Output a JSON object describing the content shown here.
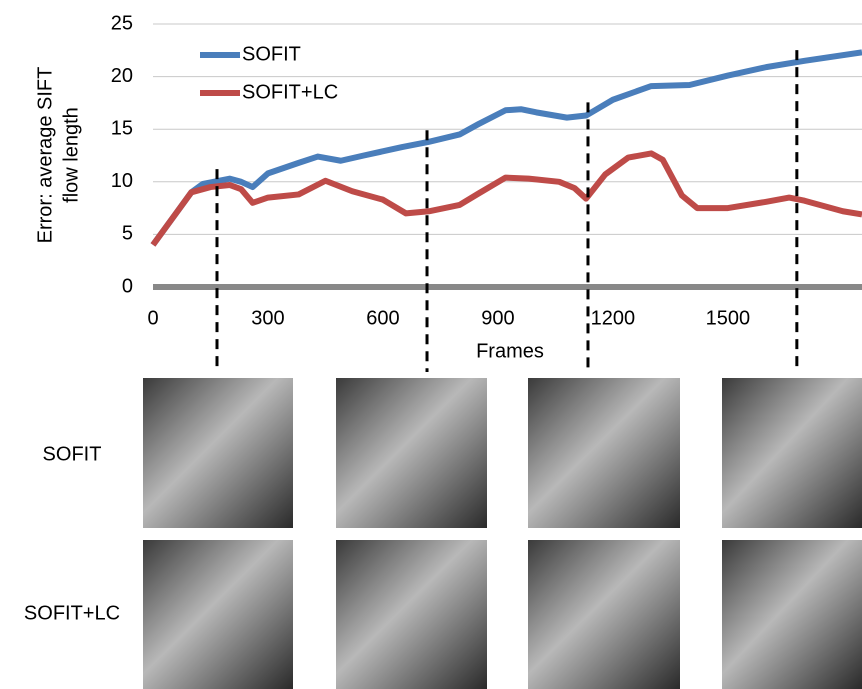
{
  "chart_data": {
    "type": "line",
    "ylabel": [
      "Error: average SIFT",
      "flow length"
    ],
    "xlabel": "Frames",
    "xlim": [
      0,
      1850
    ],
    "ylim": [
      0,
      25
    ],
    "xticks": [
      0,
      300,
      600,
      900,
      1200,
      1500
    ],
    "yticks": [
      0,
      5,
      10,
      15,
      20,
      25
    ],
    "grid": true,
    "legend": "upper left",
    "frame_markers": [
      167,
      715,
      1135,
      1680
    ],
    "series": [
      {
        "name": "SOFIT",
        "color": "#4a7ebb",
        "x": [
          0,
          30,
          60,
          100,
          130,
          200,
          230,
          260,
          300,
          380,
          430,
          490,
          550,
          650,
          720,
          800,
          850,
          920,
          960,
          1000,
          1080,
          1130,
          1200,
          1300,
          1400,
          1500,
          1600,
          1700,
          1850
        ],
        "values": [
          4,
          5.5,
          7,
          9,
          9.8,
          10.3,
          10,
          9.5,
          10.8,
          11.8,
          12.4,
          12,
          12.5,
          13.3,
          13.8,
          14.5,
          15.5,
          16.8,
          16.9,
          16.6,
          16.1,
          16.3,
          17.8,
          19.1,
          19.2,
          20.1,
          20.9,
          21.5,
          22.3
        ]
      },
      {
        "name": "SOFIT+LC",
        "color": "#be4b48",
        "x": [
          0,
          60,
          100,
          150,
          200,
          230,
          260,
          300,
          380,
          450,
          520,
          600,
          660,
          720,
          800,
          850,
          920,
          980,
          1060,
          1100,
          1130,
          1180,
          1240,
          1300,
          1330,
          1380,
          1420,
          1500,
          1600,
          1660,
          1700,
          1800,
          1850
        ],
        "values": [
          4,
          7,
          9,
          9.5,
          9.7,
          9.3,
          8,
          8.5,
          8.8,
          10.1,
          9.1,
          8.3,
          7,
          7.2,
          7.8,
          8.9,
          10.4,
          10.3,
          10,
          9.4,
          8.4,
          10.7,
          12.3,
          12.7,
          12.1,
          8.7,
          7.5,
          7.5,
          8.1,
          8.5,
          8.2,
          7.2,
          6.9
        ]
      }
    ]
  },
  "rows": [
    "SOFIT",
    "SOFIT+LC"
  ]
}
